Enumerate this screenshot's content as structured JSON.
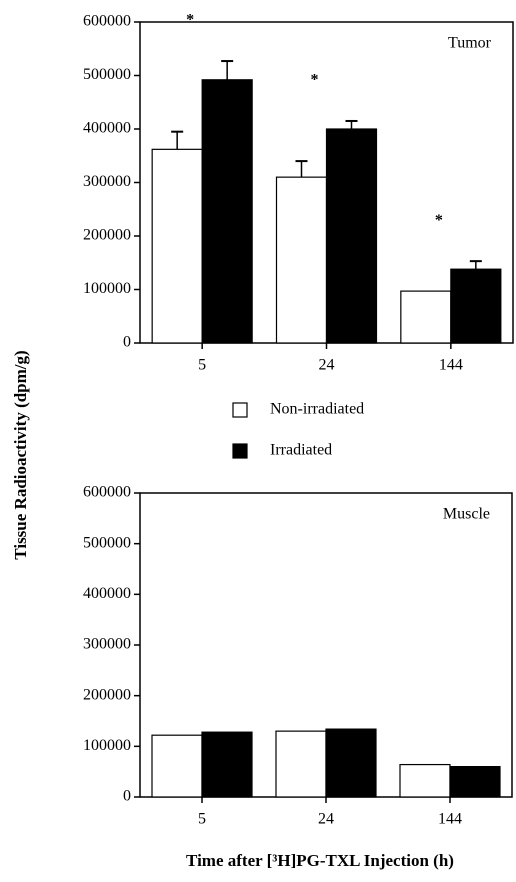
{
  "y_label": "Tissue Radioactivity (dpm/g)",
  "x_label": "Time after [³H]PG-TXL Injection (h)",
  "chart_data": [
    {
      "type": "bar",
      "panel_label": "Tumor",
      "categories": [
        "5",
        "24",
        "144"
      ],
      "series": [
        {
          "name": "Non-irradiated",
          "color": "#ffffff",
          "values": [
            362000,
            310000,
            97000
          ],
          "errors": [
            33000,
            30000,
            null
          ]
        },
        {
          "name": "Irradiated",
          "color": "#000000",
          "values": [
            492000,
            400000,
            138000
          ],
          "errors": [
            35000,
            15000,
            15000
          ]
        }
      ],
      "annotations": [
        "*",
        "*",
        "*"
      ],
      "ylim": [
        0,
        600000
      ],
      "yticks": [
        0,
        100000,
        200000,
        300000,
        400000,
        500000,
        600000
      ]
    },
    {
      "type": "bar",
      "panel_label": "Muscle",
      "categories": [
        "5",
        "24",
        "144"
      ],
      "series": [
        {
          "color": "#ffffff",
          "values": [
            122000,
            130000,
            64000
          ]
        },
        {
          "color": "#000000",
          "values": [
            128000,
            134000,
            60000
          ]
        }
      ],
      "ylim": [
        0,
        600000
      ],
      "yticks": [
        0,
        100000,
        200000,
        300000,
        400000,
        500000,
        600000
      ]
    }
  ]
}
